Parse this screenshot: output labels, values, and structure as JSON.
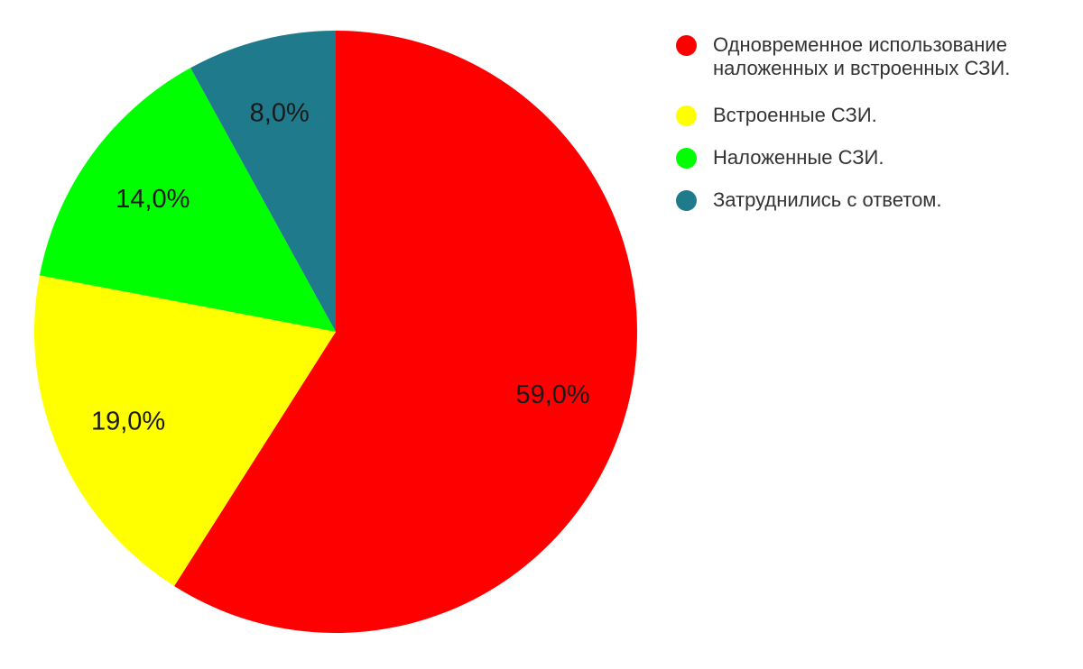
{
  "chart_data": {
    "type": "pie",
    "title": "",
    "unit": "%",
    "decimal_separator": ",",
    "start_angle_deg": 0,
    "direction": "clockwise",
    "legend_position": "right",
    "background_color": "#ffffff",
    "label_text_color": "#1a1a1a",
    "legend_text_color": "#333333",
    "slices": [
      {
        "label": "Одновременное использование наложенных и встроенных СЗИ.",
        "value": 59.0,
        "display_value": "59,0%",
        "color": "#ff0000"
      },
      {
        "label": "Встроенные СЗИ.",
        "value": 19.0,
        "display_value": "19,0%",
        "color": "#ffff00"
      },
      {
        "label": "Наложенные СЗИ.",
        "value": 14.0,
        "display_value": "14,0%",
        "color": "#00ff00"
      },
      {
        "label": "Затруднились с ответом.",
        "value": 8.0,
        "display_value": "8,0%",
        "color": "#1f7a8c"
      }
    ]
  }
}
